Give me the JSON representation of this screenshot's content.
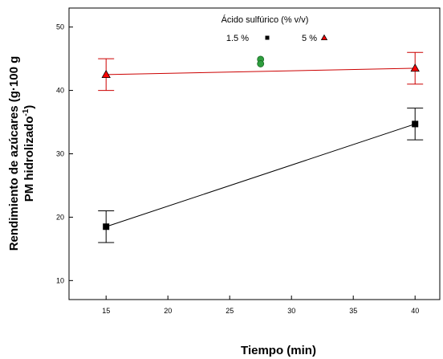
{
  "chart_data": {
    "type": "line",
    "xlabel": "Tiempo (min)",
    "ylabel_line1": "Rendimiento de azúcares (g·100 g",
    "ylabel_line2": "PM hidrolizado",
    "ylabel_superscript": "-1",
    "ylabel_close": ")",
    "xlim": [
      12,
      42
    ],
    "ylim": [
      7,
      53
    ],
    "x_ticks": [
      15,
      20,
      25,
      30,
      35,
      40
    ],
    "y_ticks": [
      10,
      20,
      30,
      40,
      50
    ],
    "legend": {
      "title": "Ácido sulfúrico (% v/v)",
      "placement": "top-center"
    },
    "series": [
      {
        "name": "1.5 %",
        "marker": "square",
        "color": "#000000",
        "x": [
          15,
          40
        ],
        "y": [
          18.5,
          34.7
        ],
        "error": [
          2.5,
          2.5
        ]
      },
      {
        "name": "5 %",
        "marker": "triangle",
        "color": "#cc0000",
        "marker_color": "#ff0000",
        "x": [
          15,
          40
        ],
        "y": [
          42.5,
          43.5
        ],
        "error": [
          2.5,
          2.5
        ]
      }
    ],
    "center_points": {
      "marker": "circle",
      "color": "#2e9e3e",
      "x": [
        27.5,
        27.5
      ],
      "y": [
        44.9,
        44.2
      ]
    }
  }
}
